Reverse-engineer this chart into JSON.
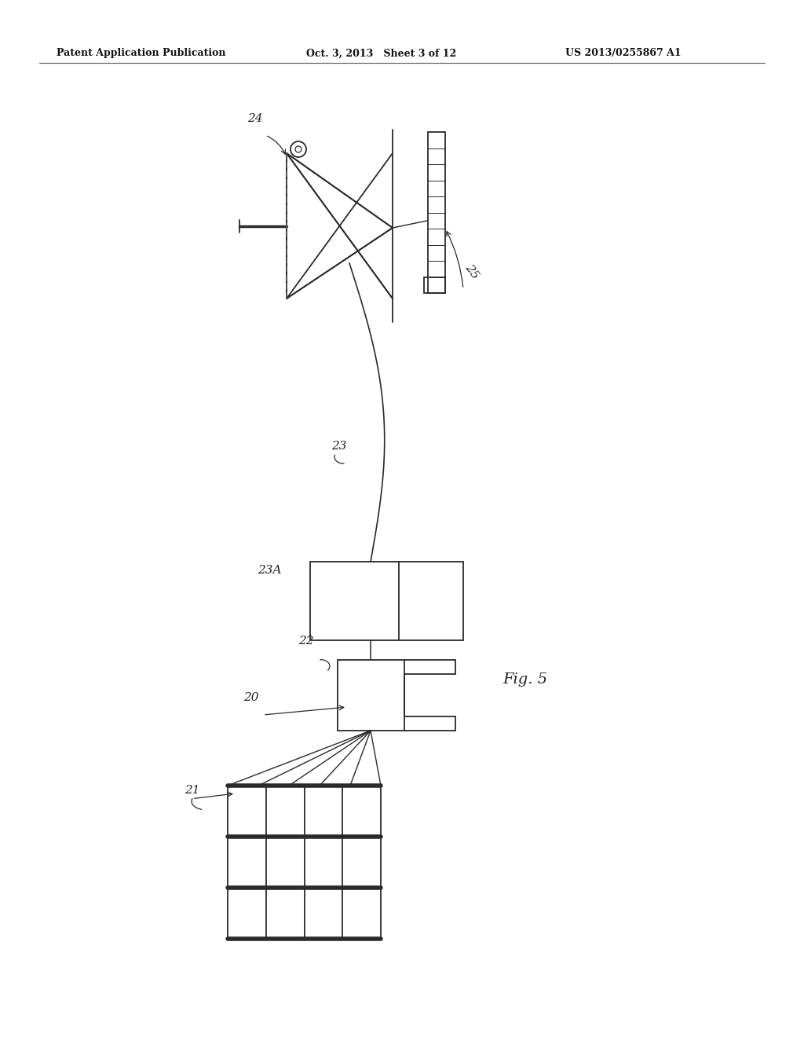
{
  "background_color": "#ffffff",
  "header_left": "Patent Application Publication",
  "header_mid": "Oct. 3, 2013   Sheet 3 of 12",
  "header_right": "US 2013/0255867 A1",
  "figure_label": "Fig. 5",
  "line_color": "#2a2a2a",
  "line_width": 1.3
}
